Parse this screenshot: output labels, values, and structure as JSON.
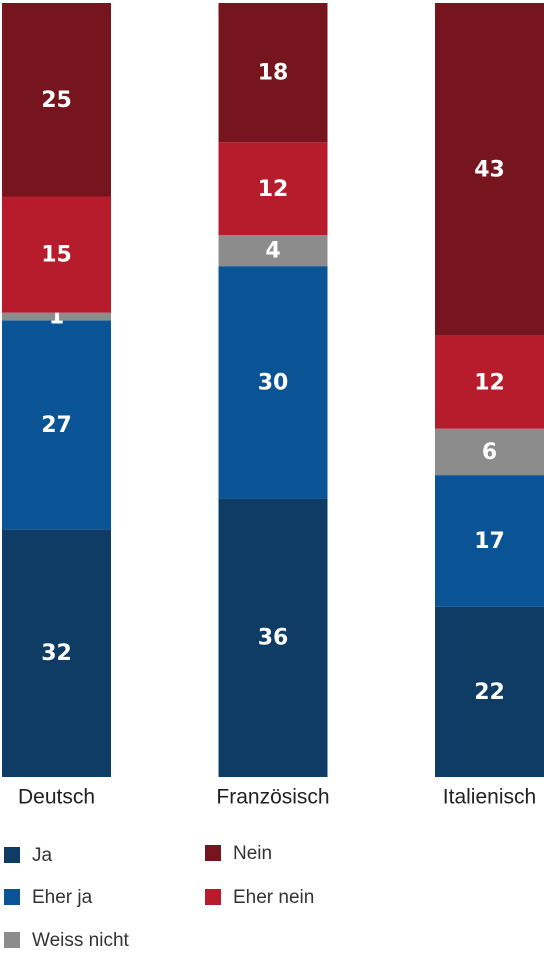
{
  "chart_data": {
    "type": "stacked-bar",
    "categories": [
      "Deutsch",
      "Französisch",
      "Italienisch"
    ],
    "series": [
      {
        "name": "Ja",
        "color": "#0f3c64",
        "values": [
          32,
          36,
          22
        ]
      },
      {
        "name": "Eher ja",
        "color": "#0a5496",
        "values": [
          27,
          30,
          17
        ]
      },
      {
        "name": "Weiss nicht",
        "color": "#8c8c8c",
        "values": [
          1,
          4,
          6
        ]
      },
      {
        "name": "Eher nein",
        "color": "#b71c2c",
        "values": [
          15,
          12,
          12
        ]
      },
      {
        "name": "Nein",
        "color": "#76151e",
        "values": [
          25,
          18,
          43
        ]
      }
    ],
    "ylim": [
      0,
      100
    ]
  }
}
